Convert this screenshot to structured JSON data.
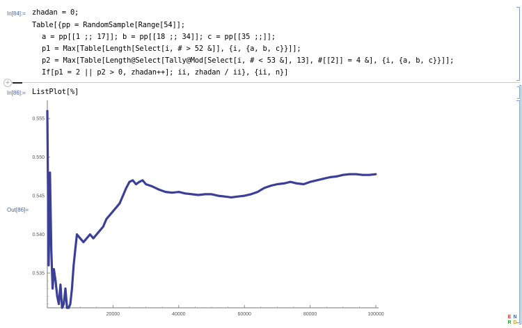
{
  "cells": {
    "in84": {
      "label": "In[84]:=",
      "lines": [
        "zhadan = 0;",
        "Table[{pp = RandomSample[Range[54]];",
        "a = pp[[1 ;; 17]]; b = pp[[18 ;; 34]]; c = pp[[35 ;;]];",
        "p1 = Max[Table[Length[Select[i, # > 52 &]], {i, {a, b, c}}]];",
        "p2 = Max[Table[Length@Select[Tally@Mod[Select[i, # < 53 &], 13], #[[2]] = 4 &], {i, {a, b, c}}]];",
        "If[p1 = 2 || p2 > 0, zhadan++]; ii, zhadan / ii}, {ii, n}]"
      ]
    },
    "in86": {
      "label": "In[86]:=",
      "code": "ListPlot[%]"
    },
    "out86": {
      "label": "Out[86]="
    }
  },
  "chart_data": {
    "type": "scatter",
    "title": "",
    "xlabel": "",
    "ylabel": "",
    "xlim": [
      0,
      100000
    ],
    "ylim": [
      0.5305,
      0.557
    ],
    "x_ticks": [
      20000,
      40000,
      60000,
      80000,
      100000
    ],
    "x_tick_labels": [
      "20000",
      "40000",
      "60000",
      "80000",
      "100000"
    ],
    "y_ticks": [
      0.535,
      0.54,
      0.545,
      0.55,
      0.555
    ],
    "y_tick_labels": [
      "0.535",
      "0.540",
      "0.545",
      "0.550",
      "0.555"
    ],
    "color": "#3b3f98",
    "series": [
      {
        "name": "",
        "x": [
          0,
          400,
          800,
          1200,
          1600,
          2000,
          2500,
          3000,
          3500,
          4000,
          4500,
          5000,
          5500,
          6000,
          6500,
          7000,
          7500,
          8000,
          8500,
          9000,
          10000,
          11000,
          12000,
          13000,
          14000,
          15000,
          16000,
          17000,
          18000,
          19000,
          20000,
          21000,
          22000,
          23000,
          24000,
          25000,
          26000,
          27000,
          28000,
          29000,
          30000,
          32000,
          34000,
          36000,
          38000,
          40000,
          42000,
          44000,
          46000,
          48000,
          50000,
          52000,
          54000,
          56000,
          58000,
          60000,
          62000,
          64000,
          66000,
          68000,
          70000,
          72000,
          74000,
          76000,
          78000,
          80000,
          82000,
          84000,
          86000,
          88000,
          90000,
          92000,
          94000,
          96000,
          98000,
          100000
        ],
        "y": [
          0.556,
          0.536,
          0.548,
          0.538,
          0.533,
          0.5355,
          0.534,
          0.532,
          0.531,
          0.5335,
          0.5305,
          0.531,
          0.533,
          0.5305,
          0.5305,
          0.531,
          0.533,
          0.536,
          0.538,
          0.54,
          0.5395,
          0.539,
          0.5395,
          0.54,
          0.5395,
          0.54,
          0.5405,
          0.541,
          0.542,
          0.5425,
          0.543,
          0.5435,
          0.544,
          0.545,
          0.546,
          0.5468,
          0.547,
          0.5465,
          0.5468,
          0.547,
          0.5465,
          0.5462,
          0.5458,
          0.5455,
          0.5454,
          0.5455,
          0.5453,
          0.5452,
          0.5451,
          0.5452,
          0.5452,
          0.545,
          0.5449,
          0.5448,
          0.5449,
          0.545,
          0.5452,
          0.5455,
          0.546,
          0.5463,
          0.5465,
          0.5466,
          0.5468,
          0.5466,
          0.5465,
          0.5468,
          0.547,
          0.5472,
          0.5474,
          0.5475,
          0.5477,
          0.5478,
          0.5478,
          0.5477,
          0.5477,
          0.5478
        ]
      }
    ]
  }
}
